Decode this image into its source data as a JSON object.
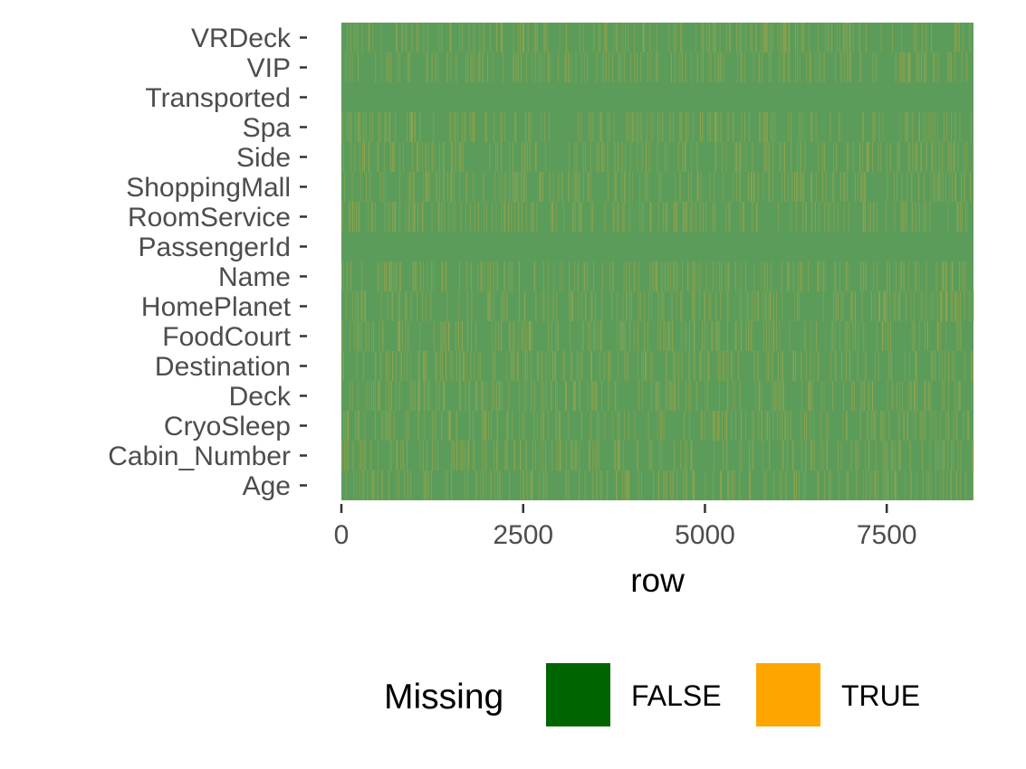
{
  "chart_data": {
    "type": "heatmap",
    "title": "",
    "xlabel": "row",
    "ylabel": "",
    "xlim": [
      0,
      8693
    ],
    "x_ticks": [
      0,
      2500,
      5000,
      7500
    ],
    "x_tick_labels": [
      "0",
      "2500",
      "5000",
      "7500"
    ],
    "variables": [
      "VRDeck",
      "VIP",
      "Transported",
      "Spa",
      "Side",
      "ShoppingMall",
      "RoomService",
      "PassengerId",
      "Name",
      "HomePlanet",
      "FoodCourt",
      "Destination",
      "Deck",
      "CryoSleep",
      "Cabin_Number",
      "Age"
    ],
    "missing_fraction": {
      "VRDeck": 0.02,
      "VIP": 0.02,
      "Transported": 0.0,
      "Spa": 0.02,
      "Side": 0.02,
      "ShoppingMall": 0.02,
      "RoomService": 0.02,
      "PassengerId": 0.0,
      "Name": 0.02,
      "HomePlanet": 0.02,
      "FoodCourt": 0.02,
      "Destination": 0.02,
      "Deck": 0.02,
      "CryoSleep": 0.02,
      "Cabin_Number": 0.02,
      "Age": 0.02
    },
    "legend": {
      "title": "Missing",
      "placement": "bottom",
      "entries": [
        {
          "label": "FALSE",
          "color": "#006400"
        },
        {
          "label": "TRUE",
          "color": "#FFA500"
        }
      ]
    },
    "cell_fill_false": "#5c9c5a",
    "cell_fill_true": "#9aa54a",
    "grid": false
  }
}
